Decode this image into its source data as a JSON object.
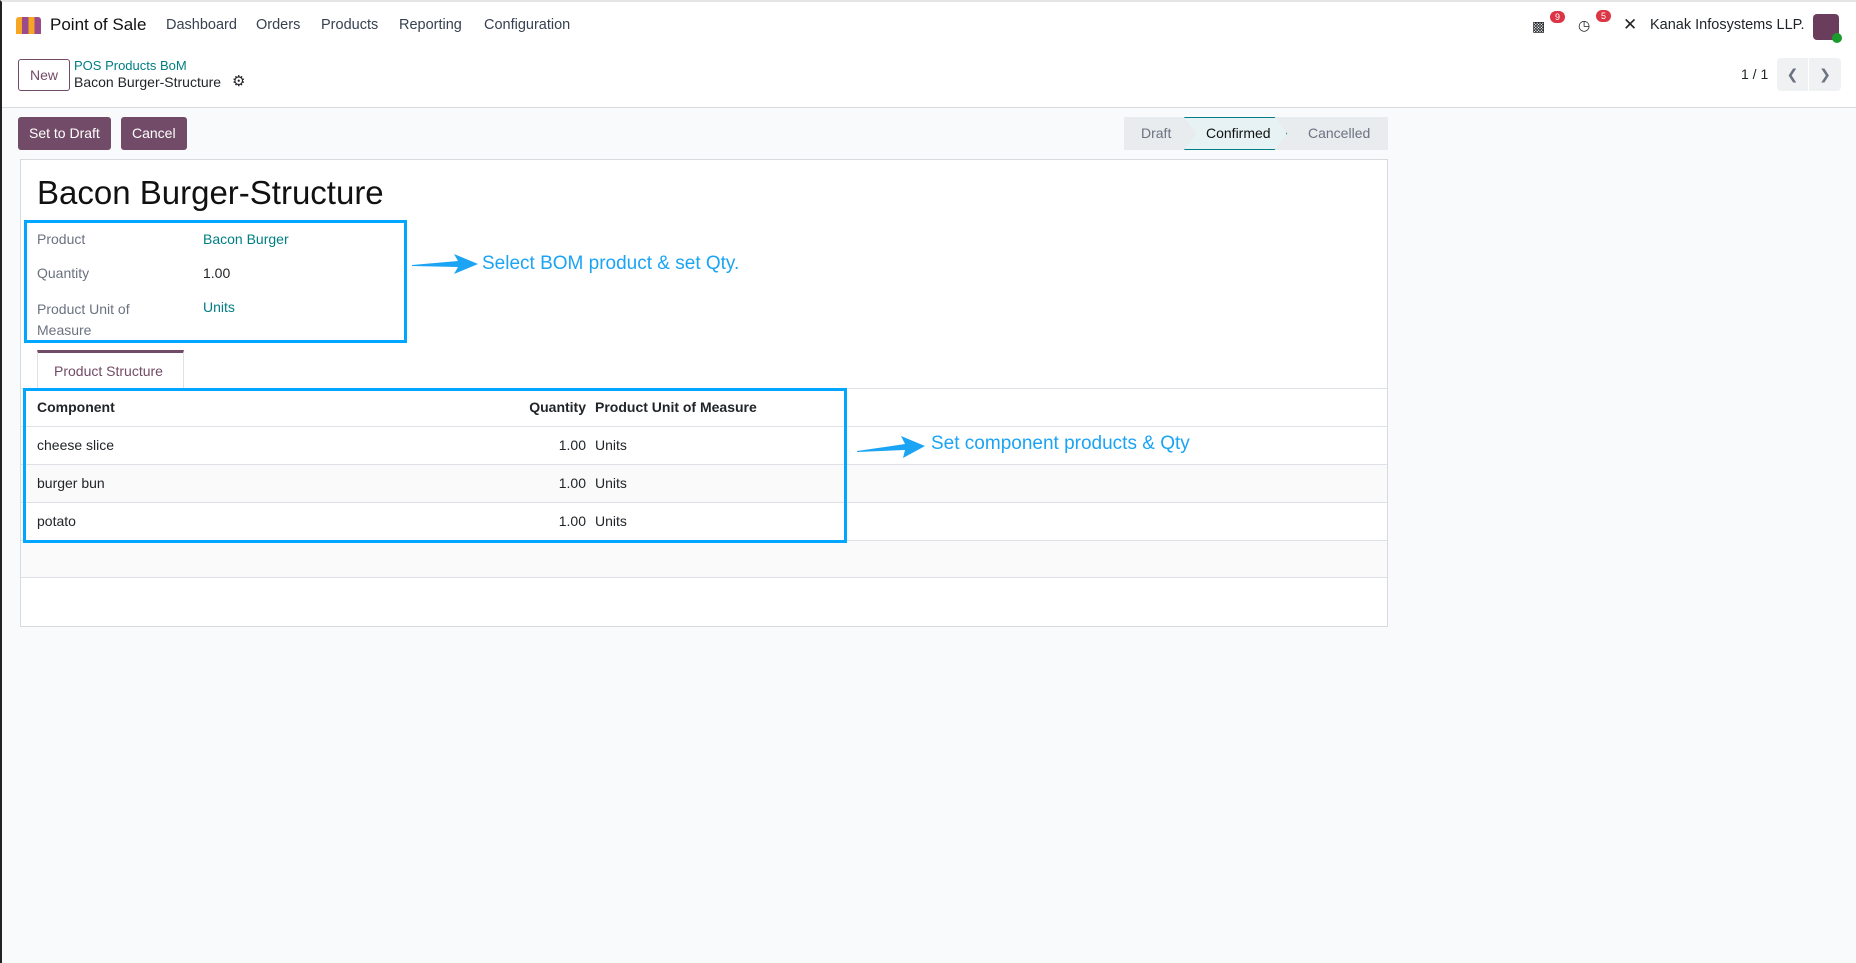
{
  "nav": {
    "app": "Point of Sale",
    "menu": [
      "Dashboard",
      "Orders",
      "Products",
      "Reporting",
      "Configuration"
    ],
    "messages_count": "9",
    "activities_count": "5",
    "company": "Kanak Infosystems LLP."
  },
  "control": {
    "new_label": "New",
    "breadcrumb_parent": "POS Products BoM",
    "breadcrumb_current": "Bacon Burger-Structure",
    "pager": "1 / 1"
  },
  "actions": {
    "set_to_draft": "Set to Draft",
    "cancel": "Cancel"
  },
  "status": {
    "steps": [
      "Draft",
      "Confirmed",
      "Cancelled"
    ],
    "current": "Confirmed"
  },
  "form": {
    "title": "Bacon Burger-Structure",
    "product_label": "Product",
    "product": "Bacon Burger",
    "quantity_label": "Quantity",
    "quantity": "1.00",
    "uom_label": "Product Unit of Measure",
    "uom": "Units"
  },
  "tabs": [
    "Product Structure"
  ],
  "table": {
    "headers": [
      "Component",
      "Quantity",
      "Product Unit of Measure"
    ],
    "rows": [
      [
        "cheese slice",
        "1.00",
        "Units"
      ],
      [
        "burger bun",
        "1.00",
        "Units"
      ],
      [
        "potato",
        "1.00",
        "Units"
      ]
    ]
  },
  "annotations": {
    "note1": "Select BOM product & set Qty.",
    "note2": "Set component products & Qty",
    "color": "#00a6ff"
  }
}
